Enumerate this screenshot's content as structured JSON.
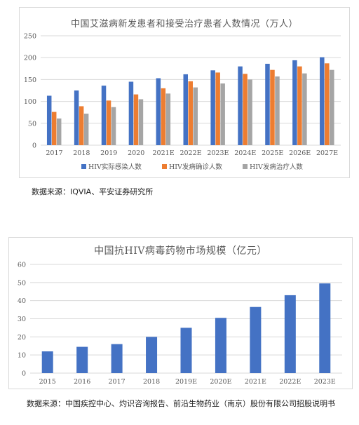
{
  "chart_data": [
    {
      "type": "bar",
      "title": "中国艾滋病新发患者和接受治疗患者人数情况（万人）",
      "categories": [
        "2017",
        "2018",
        "2019",
        "2020",
        "2021E",
        "2022E",
        "2023E",
        "2024E",
        "2025E",
        "2026E",
        "2027E"
      ],
      "series": [
        {
          "name": "HIV实际感染人数",
          "color": "#4472C4",
          "values": [
            113,
            125,
            136,
            145,
            153,
            162,
            171,
            180,
            186,
            194,
            201
          ]
        },
        {
          "name": "HIV发病确诊人数",
          "color": "#ED7D31",
          "values": [
            76,
            89,
            102,
            116,
            130,
            146,
            166,
            163,
            172,
            180,
            187
          ]
        },
        {
          "name": "HIV发病治疗人数",
          "color": "#A5A5A5",
          "values": [
            61,
            72,
            87,
            105,
            118,
            132,
            141,
            150,
            157,
            164,
            172
          ]
        }
      ],
      "yticks": [
        "0",
        "50",
        "100",
        "150",
        "200",
        "250"
      ],
      "ylim": [
        0,
        250
      ],
      "grid": true,
      "legend": "bottom"
    },
    {
      "type": "bar",
      "title": "中国抗HIV病毒药物市场规模（亿元）",
      "categories": [
        "2015",
        "2016",
        "2017",
        "2018",
        "2019E",
        "2020E",
        "2021E",
        "2022E",
        "2023E"
      ],
      "series": [
        {
          "color": "#4472C4",
          "values": [
            12,
            14.5,
            16,
            20,
            25,
            30.5,
            36.5,
            43,
            49.5
          ]
        }
      ],
      "yticks": [
        "0",
        "10",
        "20",
        "30",
        "40",
        "50",
        "60"
      ],
      "ylim": [
        0,
        60
      ],
      "grid": true
    }
  ],
  "sources": {
    "source1": "数据来源：IQVIA、平安证券研究所",
    "source2": "数据来源：中国疾控中心、灼识咨询报告、前沿生物药业（南京）股份有限公司招股说明书"
  }
}
